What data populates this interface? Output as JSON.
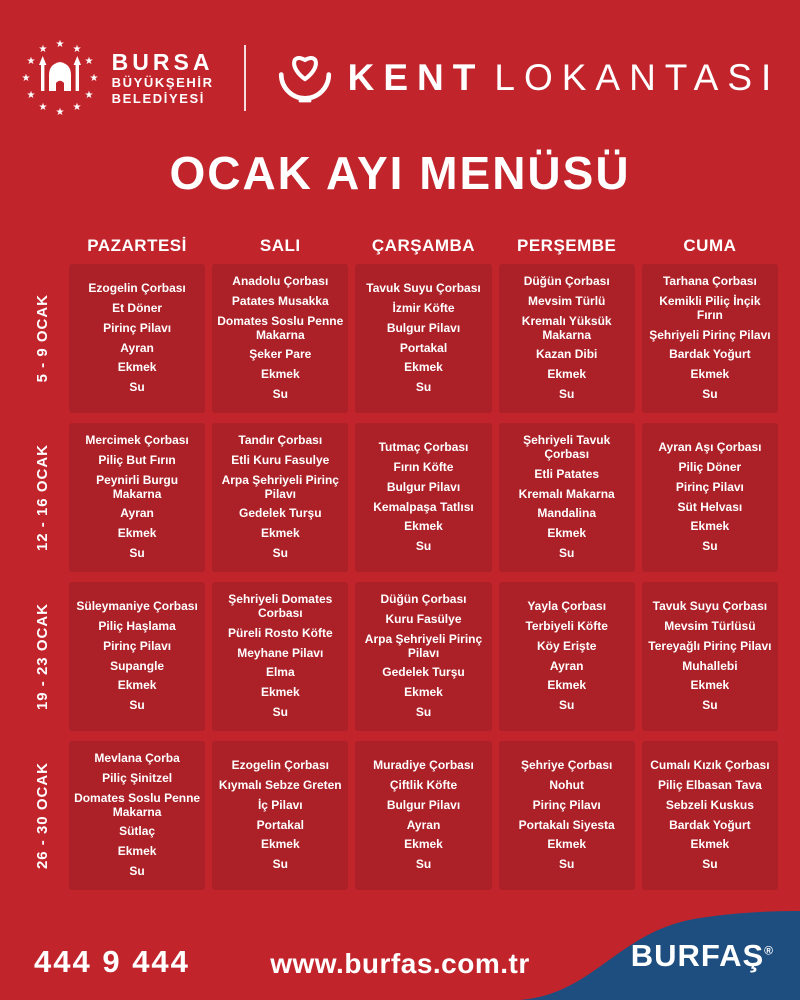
{
  "colors": {
    "background": "#C2242C",
    "panel": "#AC2028",
    "accent_blue": "#1D4E7F",
    "text": "#FFFFFF"
  },
  "header": {
    "municipality": {
      "line1": "BURSA",
      "line2": "BÜYÜKŞEHİR",
      "line3": "BELEDİYESİ"
    },
    "brand": {
      "word_bold": "KENT",
      "word_light": "LOKANTASI"
    },
    "icons": {
      "municipality": "bursa-emblem-icon",
      "brand": "heart-bowl-icon"
    }
  },
  "title": "OCAK AYI MENÜSÜ",
  "menu": {
    "day_headers": [
      "PAZARTESİ",
      "SALI",
      "ÇARŞAMBA",
      "PERŞEMBE",
      "CUMA"
    ],
    "weeks": [
      {
        "label": "5 - 9 OCAK",
        "days": [
          {
            "items": [
              "Ezogelin Çorbası",
              "Et Döner",
              "Pirinç Pilavı",
              "Ayran",
              "Ekmek",
              "Su"
            ]
          },
          {
            "items": [
              "Anadolu Çorbası",
              "Patates Musakka",
              "Domates Soslu Penne Makarna",
              "Şeker Pare",
              "Ekmek",
              "Su"
            ]
          },
          {
            "items": [
              "Tavuk Suyu Çorbası",
              "İzmir Köfte",
              "Bulgur Pilavı",
              "Portakal",
              "Ekmek",
              "Su"
            ]
          },
          {
            "items": [
              "Düğün Çorbası",
              "Mevsim Türlü",
              "Kremalı Yüksük Makarna",
              "Kazan Dibi",
              "Ekmek",
              "Su"
            ]
          },
          {
            "items": [
              "Tarhana Çorbası",
              "Kemikli Piliç İnçik Fırın",
              "Şehriyeli Pirinç Pilavı",
              "Bardak Yoğurt",
              "Ekmek",
              "Su"
            ]
          }
        ]
      },
      {
        "label": "12 - 16 OCAK",
        "days": [
          {
            "items": [
              "Mercimek Çorbası",
              "Piliç But Fırın",
              "Peynirli Burgu Makarna",
              "Ayran",
              "Ekmek",
              "Su"
            ]
          },
          {
            "items": [
              "Tandır Çorbası",
              "Etli Kuru Fasulye",
              "Arpa Şehriyeli Pirinç Pilavı",
              "Gedelek Turşu",
              "Ekmek",
              "Su"
            ]
          },
          {
            "items": [
              "Tutmaç Çorbası",
              "Fırın Köfte",
              "Bulgur Pilavı",
              "Kemalpaşa Tatlısı",
              "Ekmek",
              "Su"
            ]
          },
          {
            "items": [
              "Şehriyeli Tavuk Çorbası",
              "Etli Patates",
              "Kremalı Makarna",
              "Mandalina",
              "Ekmek",
              "Su"
            ]
          },
          {
            "items": [
              "Ayran Aşı Çorbası",
              "Piliç Döner",
              "Pirinç Pilavı",
              "Süt Helvası",
              "Ekmek",
              "Su"
            ]
          }
        ]
      },
      {
        "label": "19 - 23 OCAK",
        "days": [
          {
            "items": [
              "Süleymaniye Çorbası",
              "Piliç Haşlama",
              "Pirinç Pilavı",
              "Supangle",
              "Ekmek",
              "Su"
            ]
          },
          {
            "items": [
              "Şehriyeli Domates Corbası",
              "Püreli Rosto Köfte",
              "Meyhane Pilavı",
              "Elma",
              "Ekmek",
              "Su"
            ]
          },
          {
            "items": [
              "Düğün Çorbası",
              "Kuru Fasülye",
              "Arpa Şehriyeli Pirinç Pilavı",
              "Gedelek Turşu",
              "Ekmek",
              "Su"
            ]
          },
          {
            "items": [
              "Yayla Çorbası",
              "Terbiyeli Köfte",
              "Köy Erişte",
              "Ayran",
              "Ekmek",
              "Su"
            ]
          },
          {
            "items": [
              "Tavuk Suyu Çorbası",
              "Mevsim Türlüsü",
              "Tereyağlı Pirinç Pilavı",
              "Muhallebi",
              "Ekmek",
              "Su"
            ]
          }
        ]
      },
      {
        "label": "26 - 30 OCAK",
        "days": [
          {
            "items": [
              "Mevlana Çorba",
              "Piliç Şinitzel",
              "Domates Soslu Penne Makarna",
              "Sütlaç",
              "Ekmek",
              "Su"
            ]
          },
          {
            "items": [
              "Ezogelin Çorbası",
              "Kıymalı Sebze Greten",
              "İç Pilavı",
              "Portakal",
              "Ekmek",
              "Su"
            ]
          },
          {
            "items": [
              "Muradiye Çorbası",
              "Çiftlik Köfte",
              "Bulgur Pilavı",
              "Ayran",
              "Ekmek",
              "Su"
            ]
          },
          {
            "items": [
              "Şehriye Çorbası",
              "Nohut",
              "Pirinç Pilavı",
              "Portakalı Siyesta",
              "Ekmek",
              "Su"
            ]
          },
          {
            "items": [
              "Cumalı Kızık Çorbası",
              "Piliç Elbasan Tava",
              "Sebzeli Kuskus",
              "Bardak Yoğurt",
              "Ekmek",
              "Su"
            ]
          }
        ]
      }
    ]
  },
  "footer": {
    "phone": "444 9 444",
    "website": "www.burfas.com.tr",
    "brand": "BURFAŞ",
    "reg_mark": "®"
  }
}
